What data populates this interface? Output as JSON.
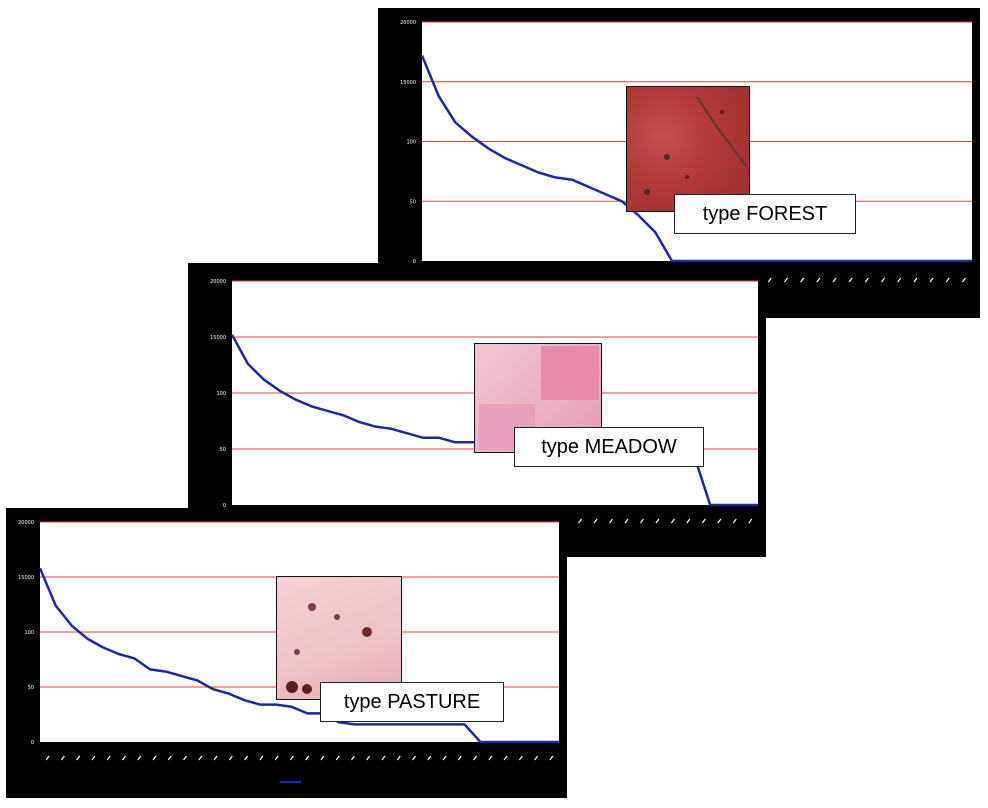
{
  "colors": {
    "panel": "#000000",
    "plot_area": "#ffffff",
    "gridline": "#e24040",
    "series_line": "#1c2aa0",
    "forest_texture": "#b53a3a",
    "meadow_texture": "#e6a6be",
    "pasture_texture": "#efc2c8"
  },
  "chart_data": [
    {
      "type": "line",
      "id": "forest",
      "label": "type FOREST",
      "y_tick_labels": [
        "20000",
        "15000",
        "100",
        "50",
        "0"
      ],
      "legend": "",
      "grid": true,
      "n_points": 34,
      "series": [
        {
          "x": [
            0,
            1,
            2,
            3,
            4,
            5,
            6,
            7,
            8,
            9,
            10,
            11,
            12,
            13,
            14,
            15,
            16,
            17,
            18,
            19,
            20,
            21,
            22,
            23,
            24,
            25,
            26,
            27,
            28,
            29,
            30,
            31,
            32,
            33
          ],
          "values": [
            86,
            69,
            58,
            52,
            47,
            43,
            40,
            37,
            35,
            34,
            31,
            28,
            25,
            19,
            12,
            0,
            0,
            0,
            0,
            0,
            0,
            0,
            0,
            0,
            0,
            0,
            0,
            0,
            0,
            0,
            0,
            0,
            0,
            0
          ]
        }
      ]
    },
    {
      "type": "line",
      "id": "meadow",
      "label": "type MEADOW",
      "y_tick_labels": [
        "20000",
        "15000",
        "100",
        "50",
        "0"
      ],
      "legend": "",
      "grid": true,
      "n_points": 34,
      "series": [
        {
          "x": [
            0,
            1,
            2,
            3,
            4,
            5,
            6,
            7,
            8,
            9,
            10,
            11,
            12,
            13,
            14,
            15,
            16,
            17,
            18,
            19,
            20,
            21,
            22,
            23,
            24,
            25,
            26,
            27,
            28,
            29,
            30,
            31,
            32,
            33
          ],
          "values": [
            76,
            63,
            56,
            51,
            47,
            44,
            42,
            40,
            37,
            35,
            34,
            32,
            30,
            30,
            28,
            28,
            28,
            26,
            26,
            26,
            26,
            22,
            22,
            22,
            22,
            22,
            22,
            22,
            22,
            22,
            0,
            0,
            0,
            0
          ]
        }
      ]
    },
    {
      "type": "line",
      "id": "pasture",
      "label": "type PASTURE",
      "y_tick_labels": [
        "20000",
        "15000",
        "100",
        "50",
        "0"
      ],
      "legend": "",
      "grid": true,
      "n_points": 34,
      "series": [
        {
          "x": [
            0,
            1,
            2,
            3,
            4,
            5,
            6,
            7,
            8,
            9,
            10,
            11,
            12,
            13,
            14,
            15,
            16,
            17,
            18,
            19,
            20,
            21,
            22,
            23,
            24,
            25,
            26,
            27,
            28,
            29,
            30,
            31,
            32,
            33
          ],
          "values": [
            79,
            62,
            53,
            47,
            43,
            40,
            38,
            33,
            32,
            30,
            28,
            24,
            22,
            19,
            17,
            17,
            16,
            13,
            13,
            9,
            8,
            8,
            8,
            8,
            8,
            8,
            8,
            8,
            0,
            0,
            0,
            0,
            0,
            0
          ]
        }
      ]
    }
  ]
}
